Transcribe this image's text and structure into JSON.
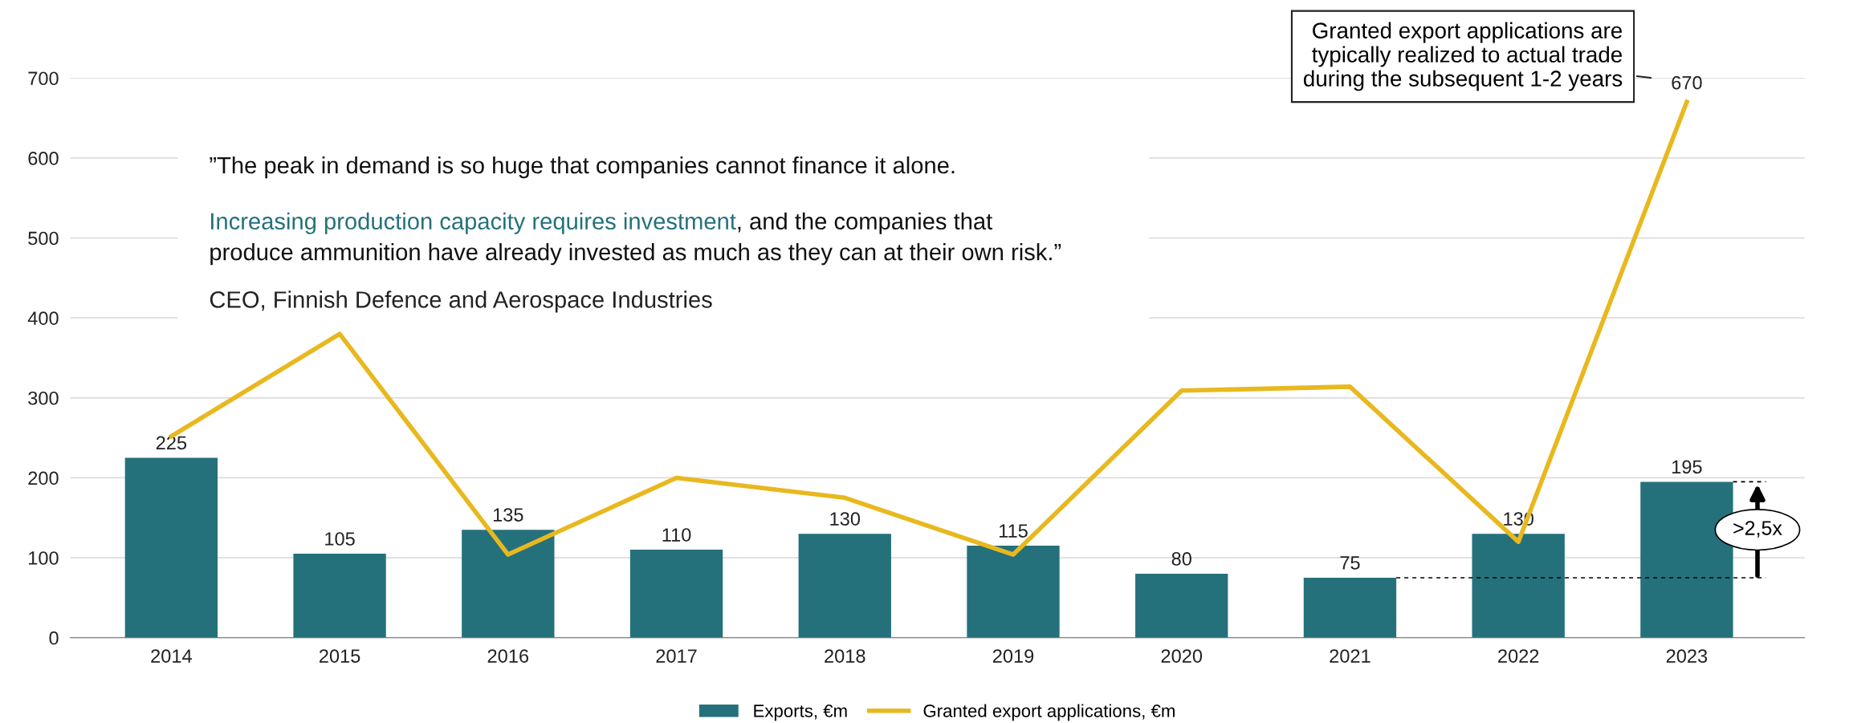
{
  "chart_data": {
    "type": "bar",
    "categories": [
      "2014",
      "2015",
      "2016",
      "2017",
      "2018",
      "2019",
      "2020",
      "2021",
      "2022",
      "2023"
    ],
    "series": [
      {
        "name": "Exports, €m",
        "color": "#24717c",
        "values": [
          225,
          105,
          135,
          110,
          130,
          115,
          80,
          75,
          130,
          195
        ],
        "value_labels": [
          "225",
          "105",
          "135",
          "110",
          "130",
          "115",
          "80",
          "75",
          "130",
          "195"
        ]
      },
      {
        "name": "Granted export applications, €m",
        "type": "line",
        "color": "#e8b81e",
        "values": [
          252,
          380,
          104,
          200,
          175,
          104,
          309,
          314,
          120,
          670
        ],
        "value_labels": [
          null,
          null,
          null,
          null,
          null,
          null,
          null,
          null,
          null,
          "670"
        ]
      }
    ],
    "ylim": [
      0,
      700
    ],
    "yticks": [
      0,
      100,
      200,
      300,
      400,
      500,
      600,
      700
    ],
    "grid": "y",
    "legend": "bottom",
    "marker": "none",
    "line_style": "solid",
    "annotations": [
      "”The peak in demand is so huge that companies cannot finance it alone.",
      "Increasing production capacity requires investment",
      ", and the companies that\nproduce ammunition have already invested as much as they can at their own risk.”",
      "CEO, Finnish Defence and Aerospace Industries",
      "Granted export applications are\ntypically realized to actual trade\nduring the subsequent 1-2 years",
      ">2,5x"
    ]
  }
}
